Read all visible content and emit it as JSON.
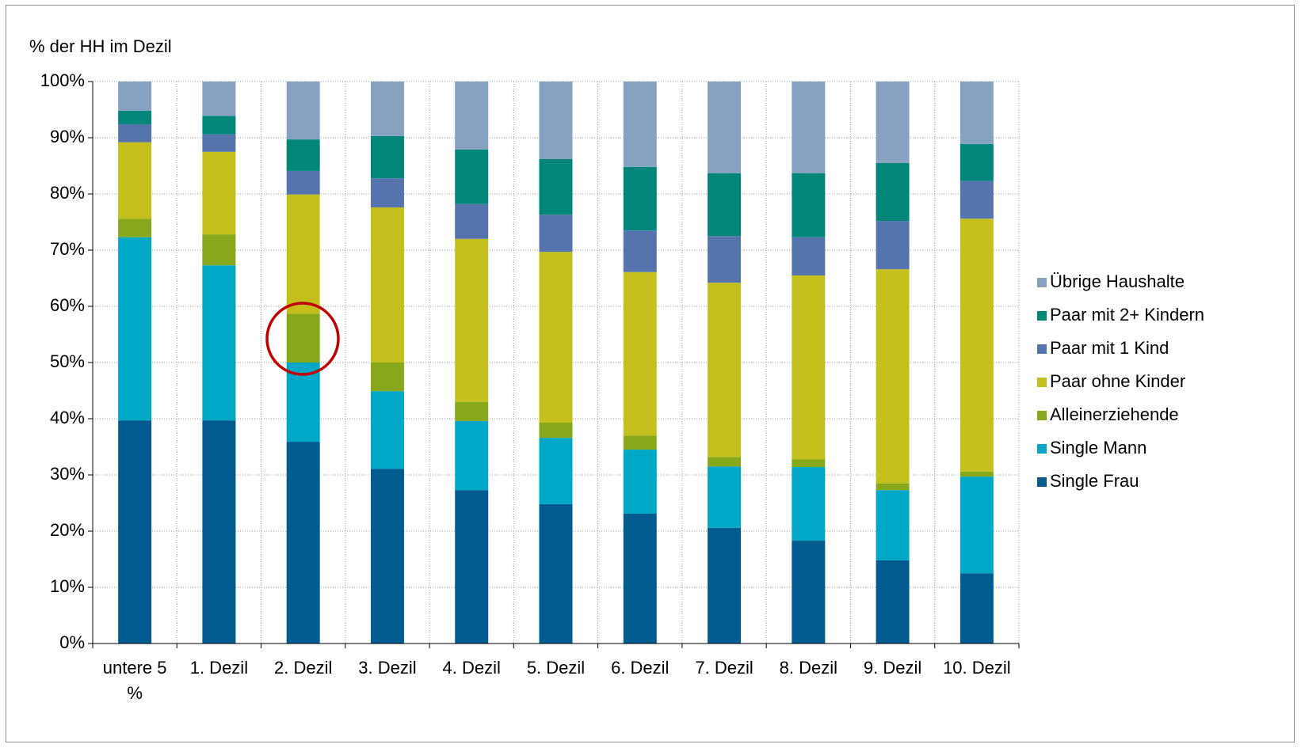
{
  "chart_data": {
    "type": "stacked_bar",
    "y_axis_title": "% der HH im Dezil",
    "categories": [
      "untere 5 %",
      "1. Dezil",
      "2. Dezil",
      "3. Dezil",
      "4. Dezil",
      "5. Dezil",
      "6. Dezil",
      "7. Dezil",
      "8. Dezil",
      "9. Dezil",
      "10. Dezil"
    ],
    "series": [
      {
        "name": "Single Frau",
        "color": "#005b8f",
        "values": [
          39.7,
          39.7,
          35.9,
          31.1,
          27.3,
          24.8,
          23.1,
          20.6,
          18.3,
          14.8,
          12.5
        ]
      },
      {
        "name": "Single Mann",
        "color": "#00a8c8",
        "values": [
          32.6,
          27.6,
          14.1,
          13.8,
          12.3,
          11.8,
          11.4,
          10.9,
          13.1,
          12.5,
          17.2
        ]
      },
      {
        "name": "Alleinerziehende",
        "color": "#86a81a",
        "values": [
          3.3,
          5.5,
          8.7,
          5.1,
          3.4,
          2.7,
          2.5,
          1.7,
          1.4,
          1.2,
          0.9
        ]
      },
      {
        "name": "Paar ohne Kinder",
        "color": "#c3c01e",
        "values": [
          13.6,
          14.7,
          21.2,
          27.6,
          29.0,
          30.4,
          29.1,
          31.0,
          32.7,
          38.1,
          45.0
        ]
      },
      {
        "name": "Paar mit 1 Kind",
        "color": "#5574ad",
        "values": [
          3.2,
          3.1,
          4.2,
          5.2,
          6.2,
          6.6,
          7.4,
          8.3,
          6.8,
          8.6,
          6.7
        ]
      },
      {
        "name": "Paar mit 2+ Kindern",
        "color": "#00877a",
        "values": [
          2.4,
          3.3,
          5.6,
          7.5,
          9.7,
          9.9,
          11.3,
          11.2,
          11.4,
          10.3,
          6.6
        ]
      },
      {
        "name": "Übrige Haushalte",
        "color": "#87a2c0",
        "values": [
          5.2,
          6.1,
          10.3,
          9.7,
          12.1,
          13.8,
          15.2,
          16.3,
          16.3,
          14.5,
          11.1
        ]
      }
    ],
    "ylim": [
      0,
      100
    ],
    "yticks": [
      {
        "value": 0,
        "label": "0%"
      },
      {
        "value": 10,
        "label": "10%"
      },
      {
        "value": 20,
        "label": "20%"
      },
      {
        "value": 30,
        "label": "30%"
      },
      {
        "value": 40,
        "label": "40%"
      },
      {
        "value": 50,
        "label": "50%"
      },
      {
        "value": 60,
        "label": "60%"
      },
      {
        "value": 70,
        "label": "70%"
      },
      {
        "value": 80,
        "label": "80%"
      },
      {
        "value": 90,
        "label": "90%"
      },
      {
        "value": 100,
        "label": "100%"
      }
    ],
    "grid": true,
    "legend": "right"
  }
}
